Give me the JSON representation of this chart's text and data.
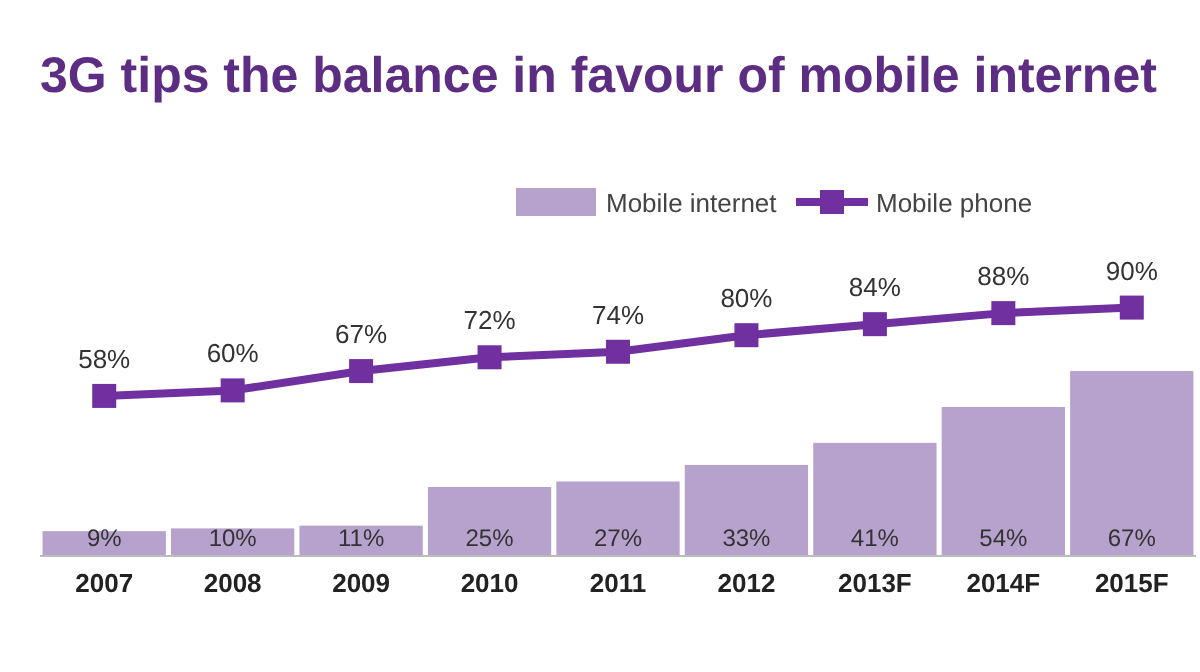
{
  "chart_data": {
    "type": "bar",
    "title": "3G tips the balance in favour of mobile internet",
    "categories": [
      "2007",
      "2008",
      "2009",
      "2010",
      "2011",
      "2012",
      "2013F",
      "2014F",
      "2015F"
    ],
    "series": [
      {
        "name": "Mobile internet",
        "color": "#b6a2cc",
        "values": [
          9,
          10,
          11,
          25,
          27,
          33,
          41,
          54,
          67
        ],
        "value_labels": [
          "9%",
          "10%",
          "11%",
          "25%",
          "27%",
          "33%",
          "41%",
          "54%",
          "67%"
        ]
      },
      {
        "name": "Mobile phone",
        "type": "line",
        "color": "#7030a0",
        "values": [
          58,
          60,
          67,
          72,
          74,
          80,
          84,
          88,
          90
        ],
        "value_labels": [
          "58%",
          "60%",
          "67%",
          "72%",
          "74%",
          "80%",
          "84%",
          "88%",
          "90%"
        ]
      }
    ],
    "legend": "top right",
    "marker": "square",
    "tick_labels": "x"
  }
}
